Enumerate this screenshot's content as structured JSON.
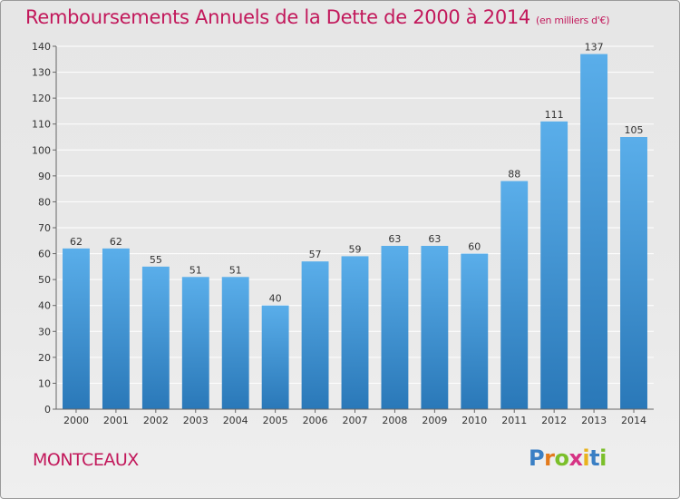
{
  "header": {
    "title": "Remboursements Annuels de la Dette de 2000 à 2014",
    "unit": "(en milliers d'€)"
  },
  "footer": {
    "commune": "MONTCEAUX",
    "logo_letters": [
      "P",
      "r",
      "o",
      "x",
      "i",
      "t",
      "i"
    ],
    "logo_colors": [
      "#3a7fc4",
      "#e37a1c",
      "#7bbf2a",
      "#d63384",
      "#e9b21c",
      "#3a7fc4",
      "#7bbf2a"
    ]
  },
  "colors": {
    "bar_top": "#5aaeea",
    "bar_bottom": "#2a78b8",
    "title": "#c2185b"
  },
  "chart_data": {
    "type": "bar",
    "categories": [
      "2000",
      "2001",
      "2002",
      "2003",
      "2004",
      "2005",
      "2006",
      "2007",
      "2008",
      "2009",
      "2010",
      "2011",
      "2012",
      "2013",
      "2014"
    ],
    "values": [
      62,
      62,
      55,
      51,
      51,
      40,
      57,
      59,
      63,
      63,
      60,
      88,
      111,
      137,
      105
    ],
    "title": "Remboursements Annuels de la Dette de 2000 à 2014",
    "ylim": [
      0,
      140
    ],
    "yticks": [
      0,
      10,
      20,
      30,
      40,
      50,
      60,
      70,
      80,
      90,
      100,
      110,
      120,
      130,
      140
    ],
    "grid": true
  }
}
